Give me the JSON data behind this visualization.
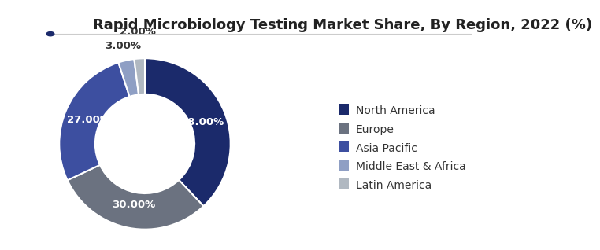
{
  "title": "Rapid Microbiology Testing Market Share, By Region, 2022 (%)",
  "slices": [
    38.0,
    30.0,
    27.0,
    3.0,
    2.0
  ],
  "labels": [
    "North America",
    "Europe",
    "Asia Pacific",
    "Middle East & Africa",
    "Latin America"
  ],
  "pct_labels": [
    "38.00%",
    "30.00%",
    "27.00%",
    "3.00%",
    "2.00%"
  ],
  "colors": [
    "#1b2a6b",
    "#6b7280",
    "#3d4fa0",
    "#8f9fc4",
    "#b0b8c1"
  ],
  "background_color": "#ffffff",
  "title_fontsize": 13,
  "legend_fontsize": 10,
  "pct_fontsize": 9.5,
  "donut_width": 0.42,
  "start_angle": 90
}
